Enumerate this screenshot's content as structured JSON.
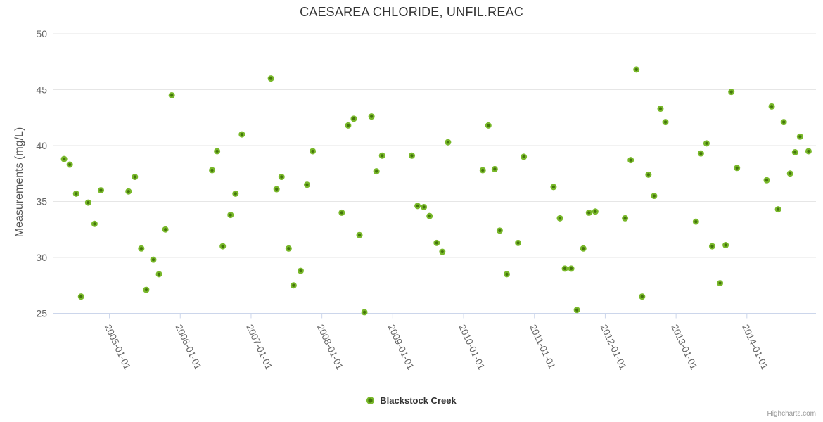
{
  "title": "CAESAREA CHLORIDE, UNFIL.REAC",
  "y_axis_title": "Measurements (mg/L)",
  "legend": {
    "label": "Blackstock Creek"
  },
  "credit": "Highcharts.com",
  "colors": {
    "series_outer": "#78b82a",
    "series_center": "#44750b",
    "grid": "#e6e6e6",
    "axis_line": "#ccd6eb",
    "tick_label": "#666666",
    "title_text": "#333333"
  },
  "chart_data": {
    "type": "scatter",
    "title": "CAESAREA CHLORIDE, UNFIL.REAC",
    "xlabel": "",
    "ylabel": "Measurements (mg/L)",
    "xlim": [
      2004.2,
      2014.975
    ],
    "ylim": [
      25,
      50
    ],
    "grid": "horizontal",
    "legend_position": "bottom-center",
    "y_ticks": [
      25,
      30,
      35,
      40,
      45,
      50
    ],
    "x_ticks": [
      {
        "value": 2005,
        "label": "2005-01-01"
      },
      {
        "value": 2006,
        "label": "2006-01-01"
      },
      {
        "value": 2007,
        "label": "2007-01-01"
      },
      {
        "value": 2008,
        "label": "2008-01-01"
      },
      {
        "value": 2009,
        "label": "2009-01-01"
      },
      {
        "value": 2010,
        "label": "2010-01-01"
      },
      {
        "value": 2011,
        "label": "2011-01-01"
      },
      {
        "value": 2012,
        "label": "2012-01-01"
      },
      {
        "value": 2013,
        "label": "2013-01-01"
      },
      {
        "value": 2014,
        "label": "2014-01-01"
      }
    ],
    "series": [
      {
        "name": "Blackstock Creek",
        "color": "#78b82a",
        "points": [
          [
            2004.36,
            38.8
          ],
          [
            2004.44,
            38.3
          ],
          [
            2004.53,
            35.7
          ],
          [
            2004.6,
            26.5
          ],
          [
            2004.7,
            34.9
          ],
          [
            2004.79,
            33.0
          ],
          [
            2004.88,
            36.0
          ],
          [
            2005.27,
            35.9
          ],
          [
            2005.36,
            37.2
          ],
          [
            2005.45,
            30.8
          ],
          [
            2005.52,
            27.1
          ],
          [
            2005.62,
            29.8
          ],
          [
            2005.7,
            28.5
          ],
          [
            2005.79,
            32.5
          ],
          [
            2005.88,
            44.5
          ],
          [
            2006.45,
            37.8
          ],
          [
            2006.52,
            39.5
          ],
          [
            2006.6,
            31.0
          ],
          [
            2006.71,
            33.8
          ],
          [
            2006.78,
            35.7
          ],
          [
            2006.87,
            41.0
          ],
          [
            2007.28,
            46.0
          ],
          [
            2007.36,
            36.1
          ],
          [
            2007.43,
            37.2
          ],
          [
            2007.53,
            30.8
          ],
          [
            2007.6,
            27.5
          ],
          [
            2007.7,
            28.8
          ],
          [
            2007.79,
            36.5
          ],
          [
            2007.87,
            39.5
          ],
          [
            2008.28,
            34.0
          ],
          [
            2008.37,
            41.8
          ],
          [
            2008.45,
            42.4
          ],
          [
            2008.53,
            32.0
          ],
          [
            2008.6,
            25.1
          ],
          [
            2008.7,
            42.6
          ],
          [
            2008.77,
            37.7
          ],
          [
            2008.85,
            39.1
          ],
          [
            2009.27,
            39.1
          ],
          [
            2009.35,
            34.6
          ],
          [
            2009.44,
            34.5
          ],
          [
            2009.52,
            33.7
          ],
          [
            2009.62,
            31.3
          ],
          [
            2009.7,
            30.5
          ],
          [
            2009.78,
            40.3
          ],
          [
            2010.27,
            37.8
          ],
          [
            2010.35,
            41.8
          ],
          [
            2010.44,
            37.9
          ],
          [
            2010.51,
            32.4
          ],
          [
            2010.61,
            28.5
          ],
          [
            2010.77,
            31.3
          ],
          [
            2010.85,
            39.0
          ],
          [
            2011.27,
            36.3
          ],
          [
            2011.36,
            33.5
          ],
          [
            2011.43,
            29.0
          ],
          [
            2011.52,
            29.0
          ],
          [
            2011.6,
            25.3
          ],
          [
            2011.69,
            30.8
          ],
          [
            2011.77,
            34.0
          ],
          [
            2011.86,
            34.1
          ],
          [
            2012.28,
            33.5
          ],
          [
            2012.36,
            38.7
          ],
          [
            2012.44,
            46.8
          ],
          [
            2012.52,
            26.5
          ],
          [
            2012.61,
            37.4
          ],
          [
            2012.69,
            35.5
          ],
          [
            2012.78,
            43.3
          ],
          [
            2012.85,
            42.1
          ],
          [
            2013.28,
            33.2
          ],
          [
            2013.35,
            39.3
          ],
          [
            2013.43,
            40.2
          ],
          [
            2013.51,
            31.0
          ],
          [
            2013.62,
            27.7
          ],
          [
            2013.7,
            31.1
          ],
          [
            2013.78,
            44.8
          ],
          [
            2013.86,
            38.0
          ],
          [
            2014.28,
            36.9
          ],
          [
            2014.35,
            43.5
          ],
          [
            2014.44,
            34.3
          ],
          [
            2014.52,
            42.1
          ],
          [
            2014.61,
            37.5
          ],
          [
            2014.68,
            39.4
          ],
          [
            2014.75,
            40.8
          ],
          [
            2014.87,
            39.5
          ]
        ]
      }
    ]
  }
}
